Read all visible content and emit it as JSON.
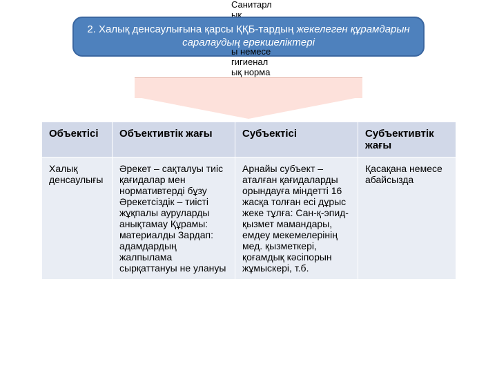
{
  "background_text_top": "Санитарлық",
  "background_text_mid": "ы немесе гигиеналық норма",
  "header": {
    "plain": "2. Халық денсаулығына қарсы ҚҚБ-тардың ",
    "italic": "жекелеген құрамдарын саралаудың ерекшеліктері"
  },
  "colors": {
    "banner_bg": "#4e81bd",
    "banner_border": "#3a66a0",
    "arrow_fill": "#fde1db",
    "th_bg": "#d1d8e8",
    "td_bg": "#e9edf4"
  },
  "table": {
    "columns": [
      "Объектісі",
      "Объективтік жағы",
      "Субъектісі",
      "Субъективтік жағы"
    ],
    "row": {
      "c1": "Халық денсаулығы",
      "c2": "Әрекет – сақталуы тиіс қағидалар мен нормативтерді бұзу Әрекетсіздік – тиісті жұқпалы ауруларды анықтамау Құрамы: материалды Зардап: адамдардың жалпылама сырқаттануы не улануы",
      "c3": "Арнайы субъект – аталған қағидаларды орындауға міндетті 16 жасқа толған есі дұрыс жеке тұлға: Сан-қ-эпид-қызмет мамандары, емдеу мекемелерінің мед. қызметкері, қоғамдық кәсіпорын жұмыскері, т.б.",
      "c4": "Қасақана немесе абайсызда"
    }
  }
}
